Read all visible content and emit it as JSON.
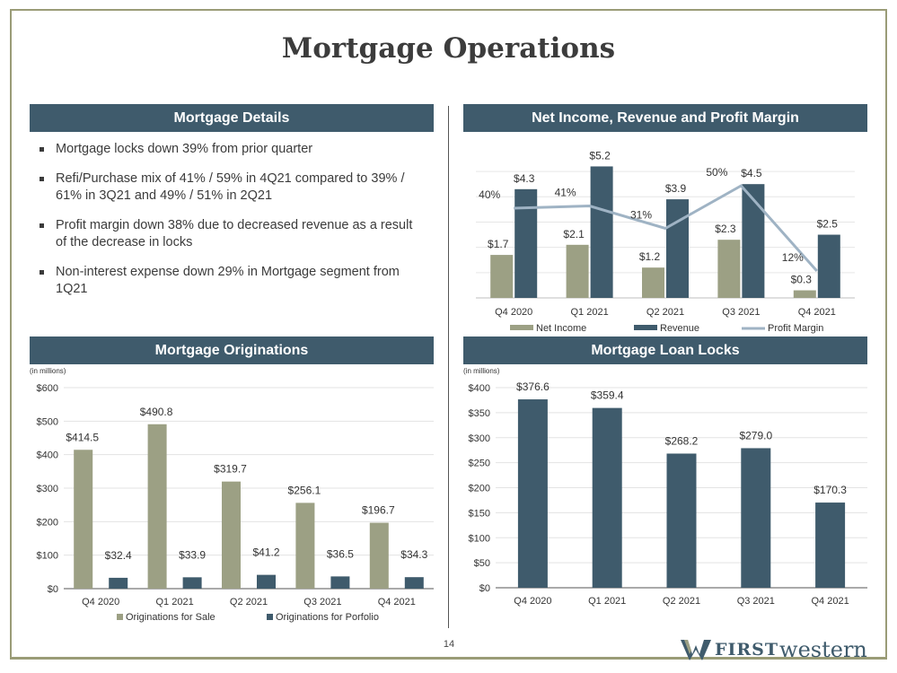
{
  "page": {
    "title": "Mortgage Operations",
    "page_number": "14",
    "logo": {
      "word1": "FIRST",
      "word2": "western"
    }
  },
  "colors": {
    "band": "#3f5b6c",
    "olive": "#9ca084",
    "navy": "#3f5b6c",
    "line": "#9fb3c4",
    "frame": "#9a9c77"
  },
  "details": {
    "header": "Mortgage Details",
    "bullets": [
      "Mortgage locks down 39% from prior quarter",
      "Refi/Purchase mix of 41% / 59% in 4Q21 compared to 39% / 61% in 3Q21 and 49% / 51% in 2Q21",
      "Profit margin down 38% due to decreased revenue as a result of the decrease in locks",
      "Non-interest expense down 29% in Mortgage segment from 1Q21"
    ]
  },
  "chart_data": [
    {
      "id": "income",
      "type": "bar+line",
      "title": "Net Income, Revenue and Profit Margin",
      "categories": [
        "Q4 2020",
        "Q1 2021",
        "Q2 2021",
        "Q3 2021",
        "Q4 2021"
      ],
      "series": [
        {
          "name": "Net Income",
          "values": [
            1.7,
            2.1,
            1.2,
            2.3,
            0.3
          ],
          "labels": [
            "$1.7",
            "$2.1",
            "$1.2",
            "$2.3",
            "$0.3"
          ],
          "color": "#9ca084"
        },
        {
          "name": "Revenue",
          "values": [
            4.3,
            5.2,
            3.9,
            4.5,
            2.5
          ],
          "labels": [
            "$4.3",
            "$5.2",
            "$3.9",
            "$4.5",
            "$2.5"
          ],
          "color": "#3f5b6c"
        },
        {
          "name": "Profit Margin",
          "type": "line",
          "values": [
            40,
            41,
            31,
            50,
            12
          ],
          "labels": [
            "40%",
            "41%",
            "31%",
            "50%",
            "12%"
          ],
          "color": "#9fb3c4"
        }
      ],
      "ylim": [
        0,
        5.5
      ],
      "y2lim": [
        0,
        62
      ],
      "legend": "bottom",
      "grid": true
    },
    {
      "id": "originations",
      "type": "bar",
      "title": "Mortgage Originations",
      "units": "(in millions)",
      "categories": [
        "Q4 2020",
        "Q1 2021",
        "Q2 2021",
        "Q3 2021",
        "Q4 2021"
      ],
      "series": [
        {
          "name": "Originations for Sale",
          "values": [
            414.5,
            490.8,
            319.7,
            256.1,
            196.7
          ],
          "labels": [
            "$414.5",
            "$490.8",
            "$319.7",
            "$256.1",
            "$196.7"
          ],
          "color": "#9ca084"
        },
        {
          "name": "Originations for Porfolio",
          "values": [
            32.4,
            33.9,
            41.2,
            36.5,
            34.3
          ],
          "labels": [
            "$32.4",
            "$33.9",
            "$41.2",
            "$36.5",
            "$34.3"
          ],
          "color": "#3f5b6c"
        }
      ],
      "yticks": [
        "$0",
        "$100",
        "$200",
        "$300",
        "$400",
        "$500",
        "$600"
      ],
      "ylim": [
        0,
        600
      ],
      "legend": "bottom",
      "grid": true
    },
    {
      "id": "locks",
      "type": "bar",
      "title": "Mortgage Loan Locks",
      "units": "(in millions)",
      "categories": [
        "Q4 2020",
        "Q1 2021",
        "Q2 2021",
        "Q3 2021",
        "Q4 2021"
      ],
      "series": [
        {
          "name": "Mortgage Loan Locks",
          "values": [
            376.6,
            359.4,
            268.2,
            279.0,
            170.3
          ],
          "labels": [
            "$376.6",
            "$359.4",
            "$268.2",
            "$279.0",
            "$170.3"
          ],
          "color": "#3f5b6c"
        }
      ],
      "yticks": [
        "$0",
        "$50",
        "$100",
        "$150",
        "$200",
        "$250",
        "$300",
        "$350",
        "$400"
      ],
      "ylim": [
        0,
        400
      ],
      "legend": "none",
      "grid": true
    }
  ]
}
